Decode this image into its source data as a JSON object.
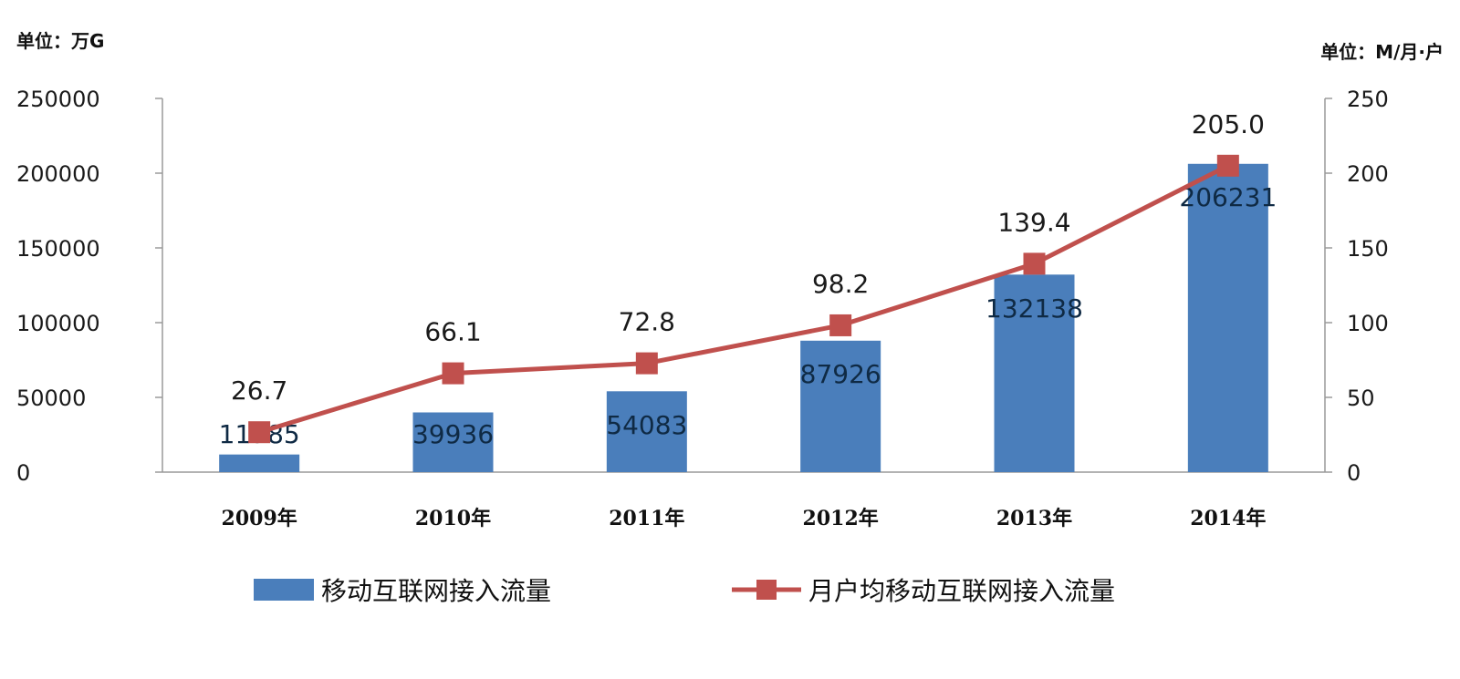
{
  "chart_data": {
    "type": "bar",
    "categories": [
      "2009年",
      "2010年",
      "2011年",
      "2012年",
      "2013年",
      "2014年"
    ],
    "left_axis": {
      "unit_label": "单位：万G",
      "ylim": [
        0,
        250000
      ],
      "ticks": [
        "0",
        "50000",
        "100000",
        "150000",
        "200000",
        "250000"
      ]
    },
    "right_axis": {
      "unit_label": "单位：M/月·户",
      "ylim": [
        0,
        250
      ],
      "ticks": [
        "0",
        "50",
        "100",
        "150",
        "200",
        "250"
      ]
    },
    "series": [
      {
        "name": "移动互联网接入流量",
        "kind": "bar",
        "axis": "left",
        "values": [
          11785,
          39936,
          54083,
          87926,
          132138,
          206231
        ],
        "labels": [
          "11785",
          "39936",
          "54083",
          "87926",
          "132138",
          "206231"
        ],
        "color": "#4a7ebb"
      },
      {
        "name": "月户均移动互联网接入流量",
        "kind": "line",
        "axis": "right",
        "values": [
          26.7,
          66.1,
          72.8,
          98.2,
          139.4,
          205.0
        ],
        "labels": [
          "26.7",
          "66.1",
          "72.8",
          "98.2",
          "139.4",
          "205.0"
        ],
        "color": "#c0504d"
      }
    ],
    "legend_position": "bottom",
    "grid": false
  }
}
